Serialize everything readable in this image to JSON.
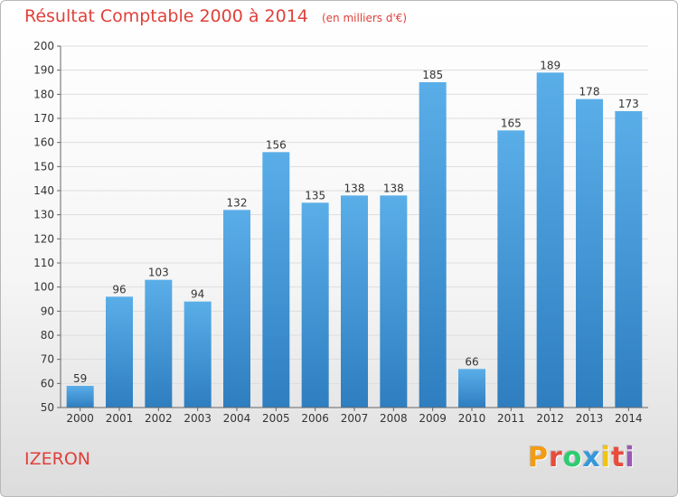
{
  "header": {
    "title": "Résultat Comptable 2000 à 2014",
    "unit": "(en milliers d'€)"
  },
  "footer": {
    "commune": "IZERON",
    "brand_letters": [
      "P",
      "r",
      "o",
      "x",
      "i",
      "t",
      "i"
    ],
    "brand_colors": [
      "#f39c12",
      "#e74c3c",
      "#2ecc71",
      "#3498db",
      "#f1c40f",
      "#e74c3c",
      "#9b59b6"
    ]
  },
  "chart_data": {
    "type": "bar",
    "categories": [
      "2000",
      "2001",
      "2002",
      "2003",
      "2004",
      "2005",
      "2006",
      "2007",
      "2008",
      "2009",
      "2010",
      "2011",
      "2012",
      "2013",
      "2014"
    ],
    "values": [
      59,
      96,
      103,
      94,
      132,
      156,
      135,
      138,
      138,
      185,
      66,
      165,
      189,
      178,
      173
    ],
    "ylim": [
      50,
      200
    ],
    "yticks": [
      50,
      60,
      70,
      80,
      90,
      100,
      110,
      120,
      130,
      140,
      150,
      160,
      170,
      180,
      190,
      200
    ],
    "grid": true,
    "bar_color_top": "#5aaee8",
    "bar_color_bottom": "#2e7ec0"
  }
}
